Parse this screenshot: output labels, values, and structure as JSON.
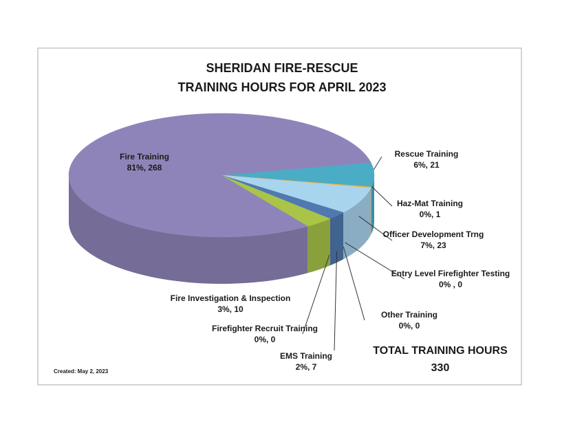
{
  "chart_data": {
    "type": "pie3d",
    "title": "SHERIDAN FIRE-RESCUE",
    "subtitle": "TRAINING HOURS FOR APRIL 2023",
    "categories": [
      "Rescue Training",
      "Haz-Mat Training",
      "Officer Development Trng",
      "Entry Level Firefighter Testing",
      "Other Training",
      "EMS Training",
      "Firefighter Recruit Training",
      "Fire Investigation & Inspection",
      "Fire Training"
    ],
    "values": [
      21,
      1,
      23,
      0,
      0,
      7,
      0,
      10,
      268
    ],
    "value_labels": [
      "6%, 21",
      "0%, 1",
      "7%, 23",
      "0% , 0",
      "0%, 0",
      "2%, 7",
      "0%, 0",
      "3%, 10",
      "81%, 268"
    ],
    "colors": [
      "#4bacc6",
      "#f0b43c",
      "#a9d4ee",
      "#8fb0d8",
      "#6f8fbf",
      "#4f79b0",
      "#8fb0d8",
      "#a9c447",
      "#8f84b9"
    ],
    "total_label": "TOTAL TRAINING  HOURS",
    "total": 330,
    "note": "Created:  May 2, 2023"
  }
}
